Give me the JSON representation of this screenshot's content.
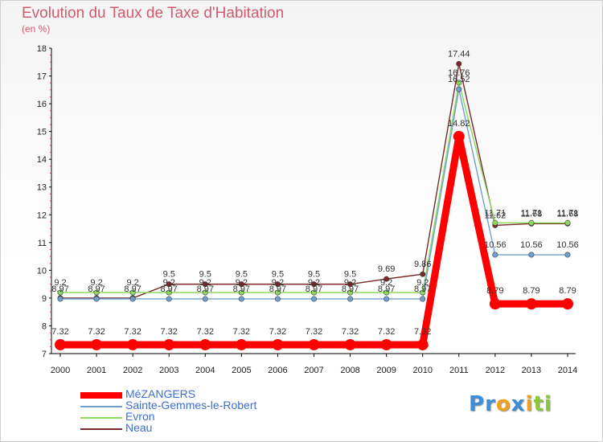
{
  "chart_data": {
    "type": "line",
    "title": "Evolution du Taux de Taxe d'Habitation",
    "ylabel": "(en %)",
    "xlabel": "",
    "ylim": [
      7,
      18
    ],
    "yticks": [
      7,
      8,
      9,
      10,
      11,
      12,
      13,
      14,
      15,
      16,
      17,
      18
    ],
    "categories": [
      "2000",
      "2001",
      "2002",
      "2003",
      "2004",
      "2005",
      "2006",
      "2007",
      "2008",
      "2009",
      "2010",
      "2011",
      "2012",
      "2013",
      "2014"
    ],
    "series": [
      {
        "name": "MéZANGERS",
        "color": "#ff0000",
        "values": [
          7.32,
          7.32,
          7.32,
          7.32,
          7.32,
          7.32,
          7.32,
          7.32,
          7.32,
          7.32,
          7.32,
          14.82,
          8.79,
          8.79,
          8.79
        ],
        "labels": [
          "7.32",
          "7.32",
          "7.32",
          "7.32",
          "7.32",
          "7.32",
          "7.32",
          "7.32",
          "7.32",
          "7.32",
          "7.32",
          "14.82",
          "8.79",
          "8.79",
          "8.79"
        ]
      },
      {
        "name": "Sainte-Gemmes-le-Robert",
        "color": "#6ea0d0",
        "values": [
          8.97,
          8.97,
          8.97,
          8.97,
          8.97,
          8.97,
          8.97,
          8.97,
          8.97,
          8.97,
          8.97,
          16.52,
          10.56,
          10.56,
          10.56
        ],
        "labels": [
          "8.97",
          "8.97",
          "8.97",
          "8.97",
          "8.97",
          "8.97",
          "8.97",
          "8.97",
          "8.97",
          "8.97",
          "8.97",
          "16.52",
          "10.56",
          "10.56",
          "10.56"
        ]
      },
      {
        "name": "Evron",
        "color": "#8ed860",
        "values": [
          9.2,
          9.2,
          9.2,
          9.2,
          9.2,
          9.2,
          9.2,
          9.2,
          9.2,
          9.2,
          9.2,
          16.76,
          11.71,
          11.71,
          11.71
        ],
        "labels": [
          "9.2",
          "9.2",
          "9.2",
          "9.2",
          "9.2",
          "9.2",
          "9.2",
          "9.2",
          "9.2",
          "9.2",
          "9.2",
          "16.76",
          "11.71",
          "11.71",
          "11.71"
        ]
      },
      {
        "name": "Neau",
        "color": "#7a2828",
        "values": [
          9,
          9,
          9,
          9.5,
          9.5,
          9.5,
          9.5,
          9.5,
          9.5,
          9.69,
          9.86,
          17.44,
          11.62,
          11.68,
          11.68
        ],
        "labels": [
          "",
          "",
          "",
          "9.5",
          "9.5",
          "9.5",
          "9.5",
          "9.5",
          "9.5",
          "9.69",
          "9.86",
          "17.44",
          "11.62",
          "11.68",
          "11.68"
        ]
      }
    ],
    "legend": "bottom-left"
  },
  "logo": {
    "letters": [
      "P",
      "r",
      "o",
      "x",
      "i",
      "t",
      "i"
    ],
    "colors": [
      "#3b8fd8",
      "#3b8fd8",
      "#f0a020",
      "#3b8fd8",
      "#f0a020",
      "#8cc63f",
      "#8cc63f"
    ]
  }
}
